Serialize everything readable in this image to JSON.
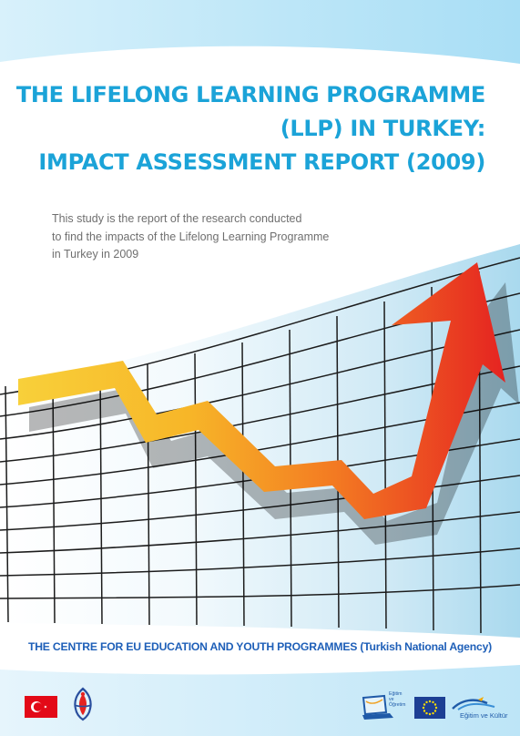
{
  "cover": {
    "title_lines": [
      "THE LIFELONG LEARNING PROGRAMME",
      "(LLP) IN TURKEY:",
      "IMPACT ASSESSMENT REPORT (2009)"
    ],
    "subtitle_lines": [
      "This study is the report of the research conducted",
      "to find the impacts of the Lifelong Learning Programme",
      "in Turkey in 2009"
    ],
    "agency": "THE CENTRE FOR EU EDUCATION AND YOUTH PROGRAMMES (Turkish National Agency)"
  },
  "logos": {
    "flag": "turkey-flag-icon",
    "national_agency": "national-agency-emblem-icon",
    "laptop_logo_text": [
      "Eğitim",
      "ve",
      "Öğretim"
    ],
    "eu_flag": "eu-flag-icon",
    "education_culture_text": "Eğitim ve Kültür"
  },
  "colors": {
    "title": "#1ba3d8",
    "agency": "#1e5fb8",
    "arrow_start": "#f6c526",
    "arrow_end": "#e52321",
    "sky_band": "#bfe6f8"
  }
}
